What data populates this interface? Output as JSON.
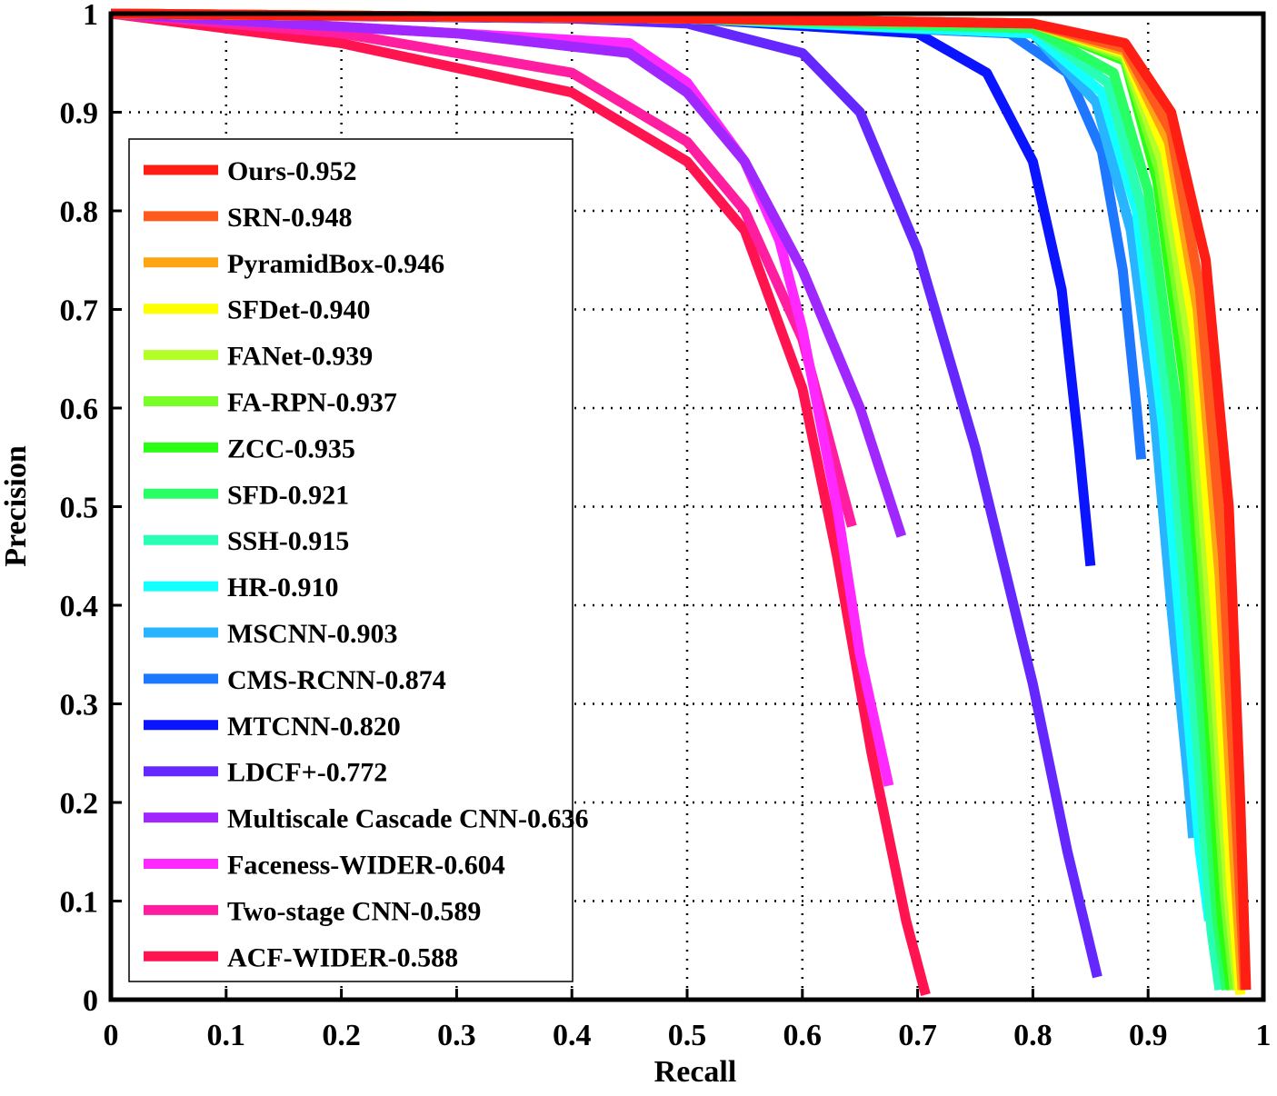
{
  "chart_data": {
    "type": "line",
    "xlabel": "Recall",
    "ylabel": "Precision",
    "grid": true,
    "legend": "left",
    "xlim": [
      0,
      1
    ],
    "ylim": [
      0,
      1
    ],
    "xticks": [
      0,
      0.1,
      0.2,
      0.3,
      0.4,
      0.5,
      0.6,
      0.7,
      0.8,
      0.9,
      1
    ],
    "yticks": [
      0,
      0.1,
      0.2,
      0.3,
      0.4,
      0.5,
      0.6,
      0.7,
      0.8,
      0.9,
      1
    ],
    "series": [
      {
        "name": "Ours-0.952",
        "color": "#ff1e14",
        "x": [
          0,
          0.5,
          0.8,
          0.88,
          0.92,
          0.95,
          0.97,
          0.98,
          0.985
        ],
        "values": [
          1,
          0.995,
          0.99,
          0.97,
          0.9,
          0.75,
          0.5,
          0.2,
          0.01
        ]
      },
      {
        "name": "SRN-0.948",
        "color": "#ff5a1e",
        "x": [
          0,
          0.5,
          0.8,
          0.88,
          0.92,
          0.945,
          0.965,
          0.978,
          0.984
        ],
        "values": [
          1,
          0.995,
          0.99,
          0.965,
          0.88,
          0.72,
          0.45,
          0.15,
          0.01
        ]
      },
      {
        "name": "PyramidBox-0.946",
        "color": "#ffa514",
        "x": [
          0,
          0.5,
          0.8,
          0.88,
          0.918,
          0.943,
          0.962,
          0.975,
          0.982
        ],
        "values": [
          1,
          0.995,
          0.99,
          0.962,
          0.87,
          0.7,
          0.43,
          0.14,
          0.01
        ]
      },
      {
        "name": "SFDet-0.940",
        "color": "#ffff00",
        "x": [
          0,
          0.5,
          0.8,
          0.88,
          0.915,
          0.94,
          0.958,
          0.972,
          0.98
        ],
        "values": [
          1,
          0.995,
          0.99,
          0.96,
          0.86,
          0.68,
          0.4,
          0.12,
          0.005
        ]
      },
      {
        "name": "FANet-0.939",
        "color": "#b4ff28",
        "x": [
          0,
          0.5,
          0.8,
          0.88,
          0.912,
          0.937,
          0.955,
          0.97,
          0.978
        ],
        "values": [
          1,
          0.995,
          0.99,
          0.958,
          0.85,
          0.66,
          0.38,
          0.1,
          0.01
        ]
      },
      {
        "name": "FA-RPN-0.937",
        "color": "#78ff28",
        "x": [
          0,
          0.5,
          0.8,
          0.88,
          0.91,
          0.935,
          0.952,
          0.967,
          0.975
        ],
        "values": [
          1,
          0.995,
          0.99,
          0.955,
          0.84,
          0.64,
          0.36,
          0.1,
          0.01
        ]
      },
      {
        "name": "ZCC-0.935",
        "color": "#28ff14",
        "x": [
          0,
          0.5,
          0.8,
          0.88,
          0.908,
          0.932,
          0.95,
          0.964,
          0.972
        ],
        "values": [
          1,
          0.995,
          0.99,
          0.952,
          0.83,
          0.62,
          0.34,
          0.08,
          0.01
        ]
      },
      {
        "name": "SFD-0.921",
        "color": "#28ff64",
        "x": [
          0,
          0.5,
          0.8,
          0.87,
          0.9,
          0.925,
          0.945,
          0.96,
          0.968
        ],
        "values": [
          1,
          0.995,
          0.985,
          0.94,
          0.82,
          0.6,
          0.32,
          0.08,
          0.01
        ]
      },
      {
        "name": "SSH-0.915",
        "color": "#28ffb4",
        "x": [
          0,
          0.5,
          0.8,
          0.865,
          0.895,
          0.92,
          0.94,
          0.955,
          0.962
        ],
        "values": [
          1,
          0.995,
          0.985,
          0.93,
          0.8,
          0.58,
          0.3,
          0.07,
          0.01
        ]
      },
      {
        "name": "HR-0.910",
        "color": "#14ffff",
        "x": [
          0,
          0.5,
          0.8,
          0.86,
          0.89,
          0.913,
          0.93,
          0.945,
          0.953
        ],
        "values": [
          1,
          0.995,
          0.98,
          0.92,
          0.8,
          0.58,
          0.35,
          0.15,
          0.08
        ]
      },
      {
        "name": "MSCNN-0.903",
        "color": "#28b4ff",
        "x": [
          0,
          0.5,
          0.8,
          0.855,
          0.885,
          0.905,
          0.92,
          0.935,
          0.939
        ],
        "values": [
          1,
          0.995,
          0.98,
          0.91,
          0.78,
          0.6,
          0.4,
          0.22,
          0.164
        ]
      },
      {
        "name": "CMS-RCNN-0.874",
        "color": "#1e78ff",
        "x": [
          0,
          0.5,
          0.78,
          0.83,
          0.86,
          0.878,
          0.89,
          0.894
        ],
        "values": [
          1,
          0.995,
          0.98,
          0.94,
          0.86,
          0.74,
          0.6,
          0.548
        ]
      },
      {
        "name": "MTCNN-0.820",
        "color": "#0a14ff",
        "x": [
          0,
          0.5,
          0.7,
          0.76,
          0.8,
          0.825,
          0.84,
          0.85
        ],
        "values": [
          1,
          0.995,
          0.98,
          0.94,
          0.85,
          0.72,
          0.56,
          0.44
        ]
      },
      {
        "name": "LDCF+-0.772",
        "color": "#6428ff",
        "x": [
          0,
          0.4,
          0.5,
          0.6,
          0.65,
          0.7,
          0.75,
          0.8,
          0.83,
          0.856
        ],
        "values": [
          1,
          0.995,
          0.99,
          0.96,
          0.9,
          0.76,
          0.56,
          0.32,
          0.15,
          0.023
        ]
      },
      {
        "name": "Multiscale Cascade CNN-0.636",
        "color": "#a028ff",
        "x": [
          0,
          0.3,
          0.45,
          0.5,
          0.55,
          0.6,
          0.65,
          0.686
        ],
        "values": [
          1,
          0.98,
          0.96,
          0.92,
          0.85,
          0.74,
          0.6,
          0.47
        ]
      },
      {
        "name": "Faceness-WIDER-0.604",
        "color": "#ff28ff",
        "x": [
          0,
          0.3,
          0.45,
          0.5,
          0.55,
          0.58,
          0.6,
          0.63,
          0.65,
          0.675
        ],
        "values": [
          1,
          0.98,
          0.97,
          0.93,
          0.85,
          0.77,
          0.68,
          0.5,
          0.35,
          0.217
        ]
      },
      {
        "name": "Two-stage CNN-0.589",
        "color": "#ff1ea0",
        "x": [
          0,
          0.2,
          0.4,
          0.5,
          0.55,
          0.6,
          0.643
        ],
        "values": [
          1,
          0.98,
          0.94,
          0.87,
          0.8,
          0.67,
          0.48
        ]
      },
      {
        "name": "ACF-WIDER-0.588",
        "color": "#ff1450",
        "x": [
          0,
          0.2,
          0.4,
          0.5,
          0.55,
          0.6,
          0.63,
          0.66,
          0.69,
          0.707
        ],
        "values": [
          1,
          0.97,
          0.92,
          0.85,
          0.78,
          0.62,
          0.45,
          0.25,
          0.08,
          0.005
        ]
      }
    ]
  }
}
